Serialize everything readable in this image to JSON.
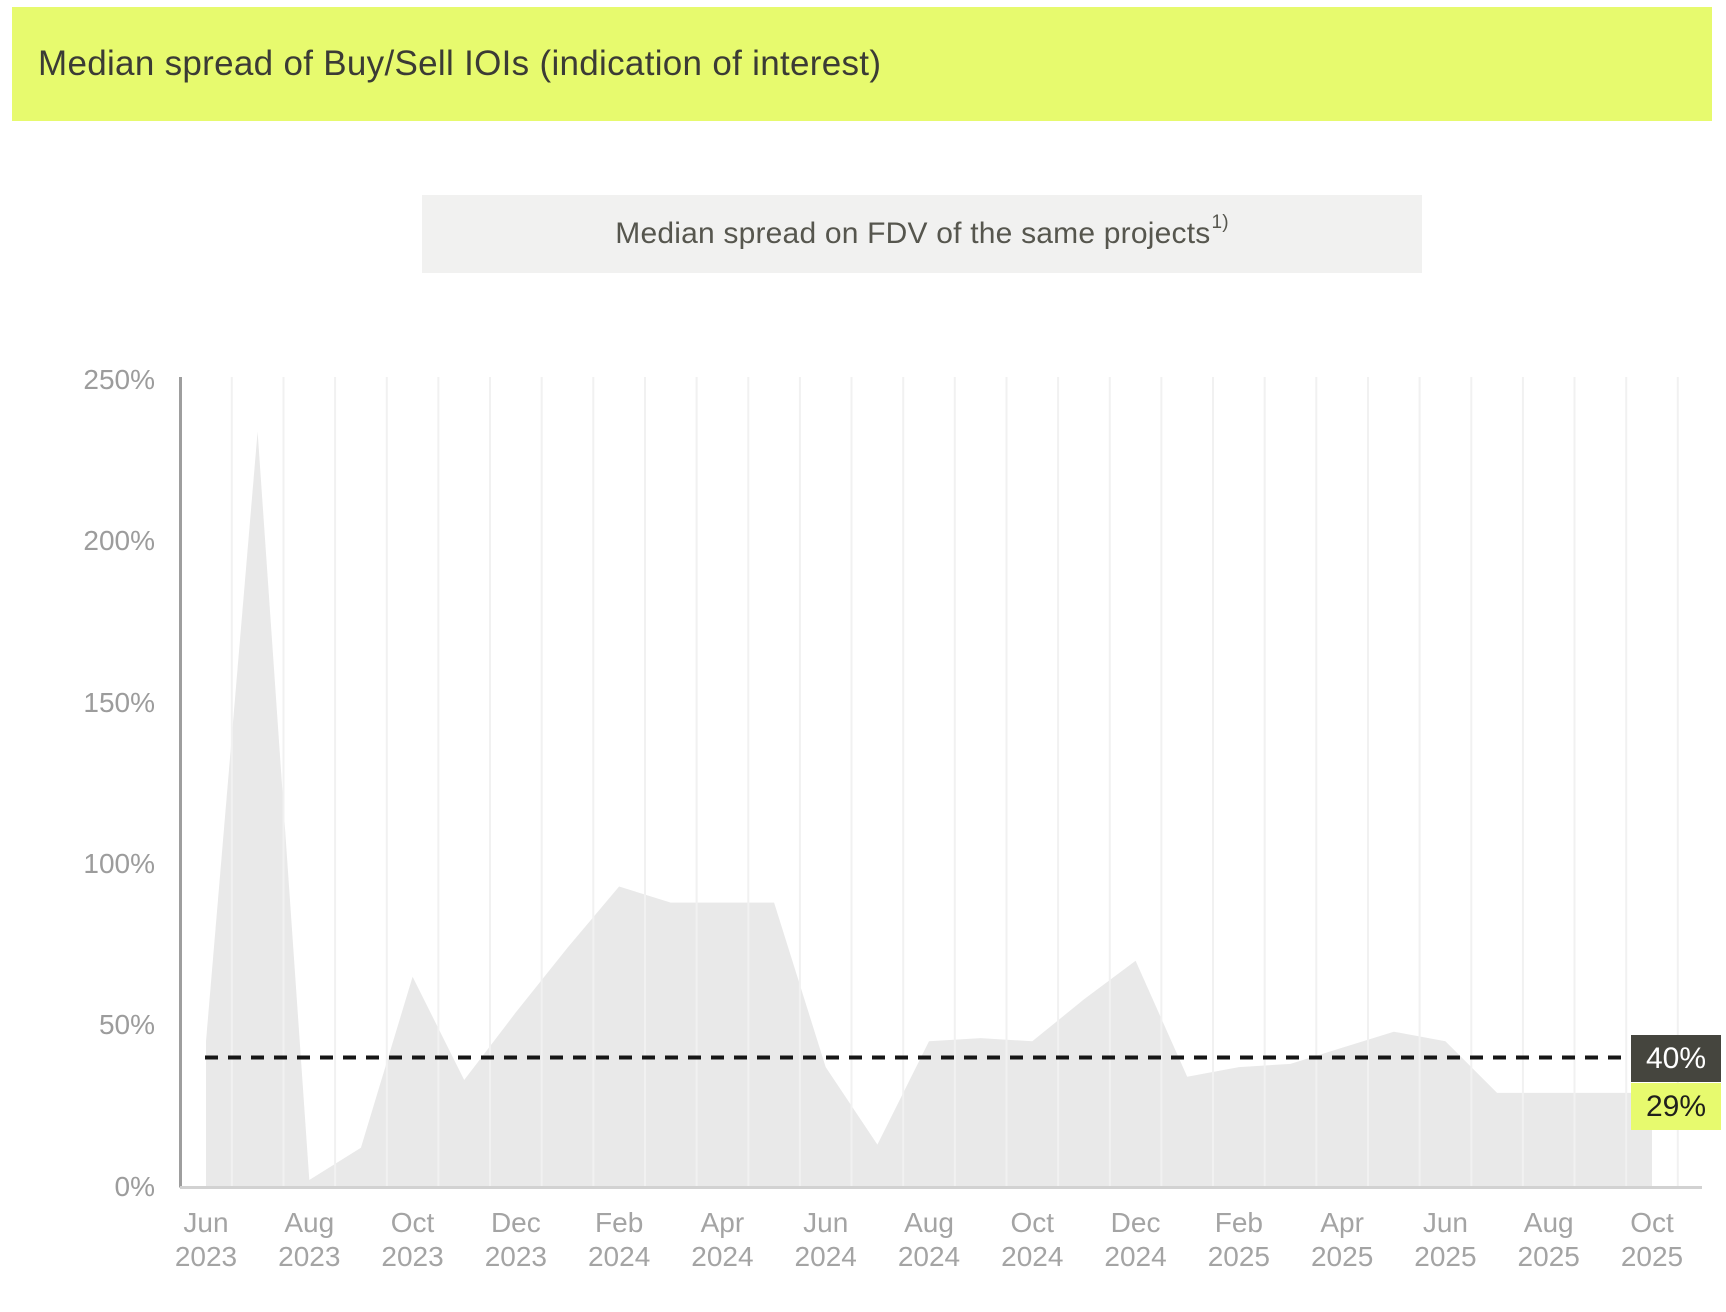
{
  "header": {
    "title": "Median spread of Buy/Sell IOIs (indication of interest)"
  },
  "subtitle": {
    "text": "Median spread on FDV of the same projects",
    "footnote_marker": "1)"
  },
  "annotations": {
    "reference_label": "40%",
    "last_value_label": "29%"
  },
  "colors": {
    "accent": "#e7fa6e",
    "banner_text": "#3b3b35",
    "subtitle_bg": "#f1f1f0",
    "area_fill": "#e9e9e9",
    "gridline": "#f1f1f1",
    "y_axis_line": "#9e9e9e",
    "baseline": "#d2d2d2",
    "dashed_line": "#161616",
    "reference_badge_bg": "#45453e",
    "reference_badge_text": "#ffffff",
    "last_badge_bg": "#e7fa6e",
    "last_badge_text": "#20201c",
    "tick_text": "#a4a4a4"
  },
  "chart_data": {
    "type": "area",
    "title": "Median spread on FDV of the same projects 1)",
    "unit": "%",
    "x": [
      "Jun 2023",
      "Jul 2023",
      "Aug 2023",
      "Sep 2023",
      "Oct 2023",
      "Nov 2023",
      "Dec 2023",
      "Jan 2024",
      "Feb 2024",
      "Mar 2024",
      "Apr 2024",
      "May 2024",
      "Jun 2024",
      "Jul 2024",
      "Aug 2024",
      "Sep 2024",
      "Oct 2024",
      "Nov 2024",
      "Dec 2024",
      "Jan 2025",
      "Feb 2025",
      "Mar 2025",
      "Apr 2025",
      "May 2025",
      "Jun 2025",
      "Jul 2025",
      "Aug 2025",
      "Sep 2025",
      "Oct 2025"
    ],
    "values": [
      45,
      234,
      2,
      12,
      65,
      33,
      54,
      74,
      93,
      88,
      88,
      88,
      37,
      13,
      45,
      46,
      45,
      58,
      70,
      34,
      37,
      38,
      43,
      48,
      45,
      29,
      29,
      29,
      29
    ],
    "ylim": [
      0,
      250
    ],
    "yticks": [
      0,
      50,
      100,
      150,
      200,
      250
    ],
    "xtick_every": 2,
    "grid": "vertical, between months",
    "legend": "none",
    "reference_line": {
      "value": 40,
      "label": "40%",
      "style": "dashed-black"
    },
    "last_value": {
      "value": 29,
      "label": "29%"
    }
  }
}
